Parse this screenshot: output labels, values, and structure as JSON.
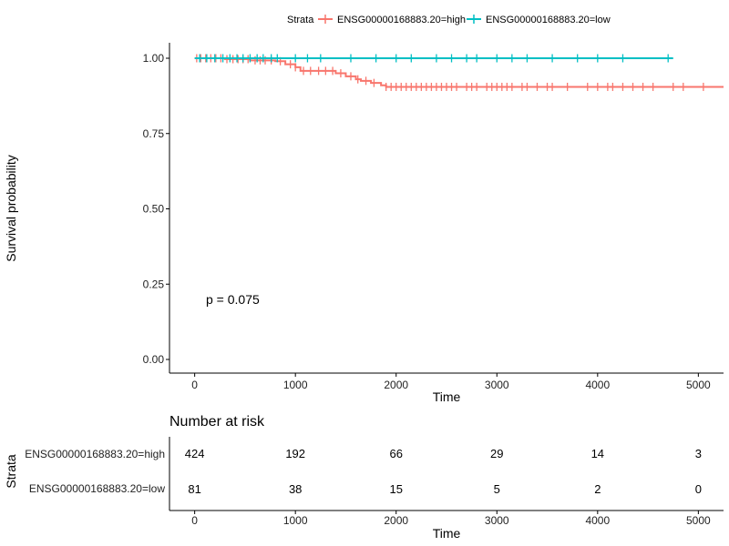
{
  "legend": {
    "title": "Strata",
    "items": [
      {
        "label": "ENSG00000168883.20=high",
        "color": "#F8766D"
      },
      {
        "label": "ENSG00000168883.20=low",
        "color": "#00BFC4"
      }
    ]
  },
  "annotation": {
    "pvalue": "p = 0.075"
  },
  "risk_table": {
    "title": "Number at risk",
    "ylabel": "Strata",
    "xlabel": "Time",
    "times": [
      0,
      1000,
      2000,
      3000,
      4000,
      5000
    ],
    "rows": [
      {
        "label": "ENSG00000168883.20=high",
        "color": "#F8766D",
        "counts": [
          "424",
          "192",
          "66",
          "29",
          "14",
          "3"
        ]
      },
      {
        "label": "ENSG00000168883.20=low",
        "color": "#00BFC4",
        "counts": [
          "81",
          "38",
          "15",
          "5",
          "2",
          "0"
        ]
      }
    ]
  },
  "chart_data": {
    "type": "line",
    "xlabel": "Time",
    "ylabel": "Survival probability",
    "xlim": [
      -250,
      5250
    ],
    "ylim": [
      0,
      1
    ],
    "xticks": [
      0,
      1000,
      2000,
      3000,
      4000,
      5000
    ],
    "yticks": [
      0.0,
      0.25,
      0.5,
      0.75,
      1.0
    ],
    "ytick_labels": [
      "0.00",
      "0.25",
      "0.50",
      "0.75",
      "1.00"
    ],
    "series": [
      {
        "name": "ENSG00000168883.20=high",
        "color": "#F8766D",
        "steps": [
          [
            0,
            1.0
          ],
          [
            300,
            0.997
          ],
          [
            550,
            0.993
          ],
          [
            800,
            0.99
          ],
          [
            900,
            0.98
          ],
          [
            1000,
            0.97
          ],
          [
            1050,
            0.958
          ],
          [
            1400,
            0.95
          ],
          [
            1500,
            0.94
          ],
          [
            1600,
            0.93
          ],
          [
            1650,
            0.925
          ],
          [
            1750,
            0.918
          ],
          [
            1850,
            0.91
          ],
          [
            1900,
            0.905
          ],
          [
            5250,
            0.905
          ]
        ],
        "censor": [
          20,
          60,
          110,
          160,
          210,
          260,
          320,
          380,
          430,
          480,
          530,
          600,
          650,
          700,
          760,
          850,
          950,
          1000,
          1080,
          1150,
          1230,
          1300,
          1370,
          1450,
          1550,
          1620,
          1700,
          1780,
          1900,
          1950,
          2000,
          2050,
          2100,
          2150,
          2200,
          2250,
          2300,
          2350,
          2400,
          2450,
          2500,
          2550,
          2600,
          2700,
          2750,
          2800,
          2900,
          2950,
          3000,
          3050,
          3100,
          3150,
          3250,
          3300,
          3400,
          3500,
          3550,
          3700,
          3900,
          4000,
          4100,
          4150,
          4250,
          4350,
          4450,
          4550,
          4750,
          4850,
          5050
        ]
      },
      {
        "name": "ENSG00000168883.20=low",
        "color": "#00BFC4",
        "steps": [
          [
            0,
            1.0
          ],
          [
            4750,
            1.0
          ]
        ],
        "censor": [
          50,
          120,
          200,
          280,
          350,
          420,
          480,
          550,
          620,
          680,
          760,
          820,
          1000,
          1120,
          1250,
          1550,
          1800,
          2000,
          2150,
          2400,
          2550,
          2700,
          2800,
          3000,
          3150,
          3300,
          3550,
          3800,
          4000,
          4250,
          4700
        ]
      }
    ]
  }
}
